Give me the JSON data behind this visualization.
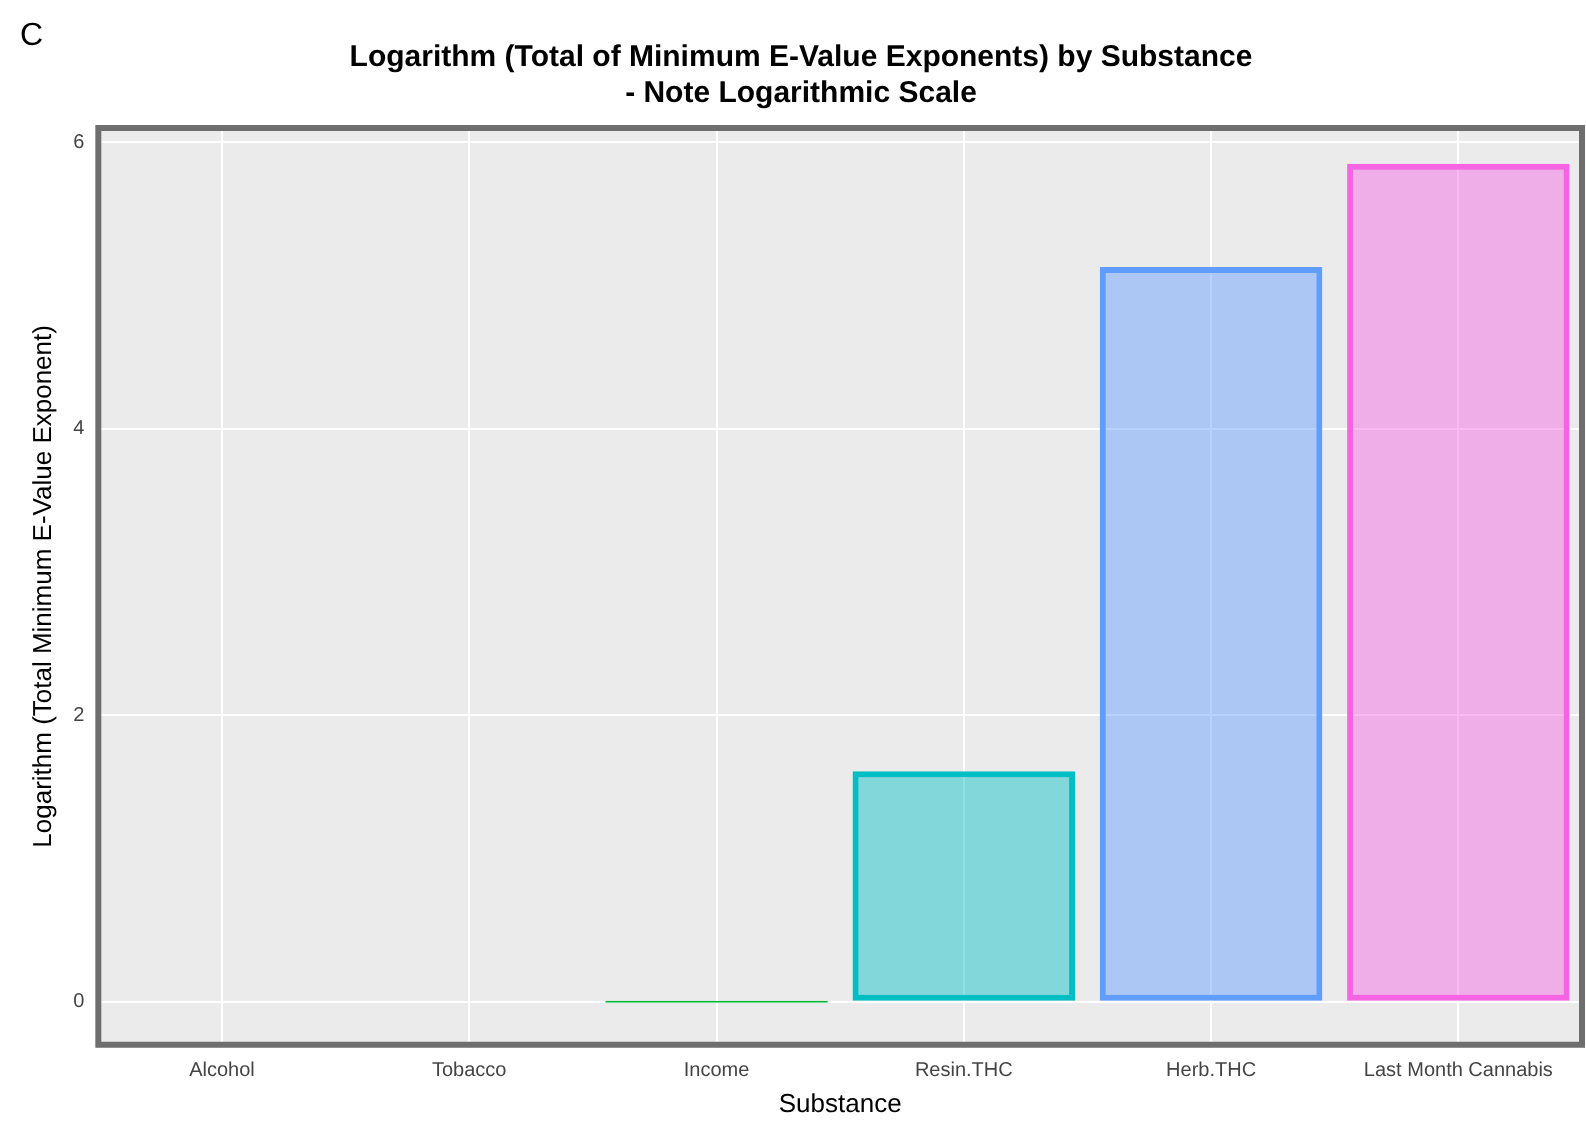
{
  "chart_data": {
    "type": "bar",
    "title": "Logarithm (Total of Minimum E-Value Exponents) by Substance\n- Note Logarithmic Scale",
    "xlabel": "Substance",
    "ylabel": "Logarithm (Total Minimum E-Value Exponent)",
    "annotations": [
      "C"
    ],
    "categories": [
      "Alcohol",
      "Tobacco",
      "Income",
      "Resin.THC",
      "Herb.THC",
      "Last Month Cannabis"
    ],
    "values": [
      null,
      null,
      0,
      1.61,
      5.13,
      5.85
    ],
    "colors": [
      "#f8766d",
      "#b79f00",
      "#00ba38",
      "#00bfc4",
      "#619cff",
      "#f564e3"
    ],
    "ylim": [
      -0.3,
      6.1
    ],
    "yticks": [
      0,
      2,
      4,
      6
    ],
    "grid": true,
    "legend": false
  }
}
